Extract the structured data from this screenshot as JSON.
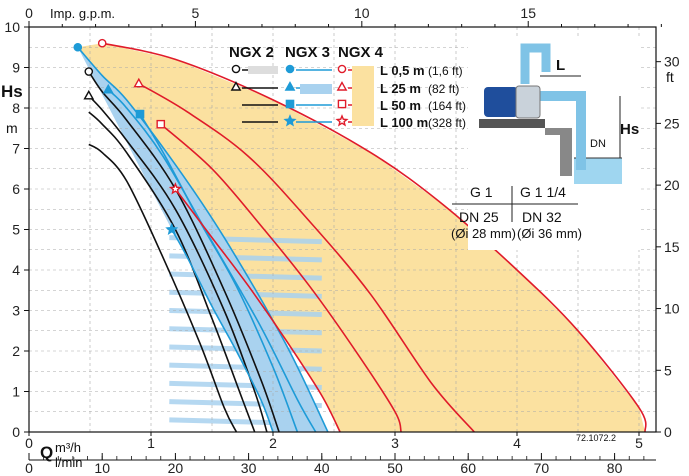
{
  "chart_data": {
    "type": "line",
    "title": "",
    "axes": {
      "x_main": {
        "label": "Q",
        "unit": "m³/h",
        "range": [
          0,
          5.2
        ],
        "ticks": [
          "0",
          "1",
          "2",
          "3",
          "4",
          "5"
        ]
      },
      "x_lmin": {
        "unit": "l/min",
        "ticks": [
          "0",
          "10",
          "20",
          "30",
          "40",
          "50",
          "60",
          "70",
          "80"
        ]
      },
      "x_top": {
        "label": "Imp. g.p.m.",
        "range": [
          0,
          19.2
        ],
        "ticks": [
          "0",
          "5",
          "10",
          "15"
        ]
      },
      "y_left": {
        "label": "Hs",
        "unit": "m",
        "range": [
          0,
          10
        ],
        "ticks": [
          "0",
          "1",
          "2",
          "3",
          "4",
          "5",
          "6",
          "7",
          "8",
          "9",
          "10"
        ]
      },
      "y_right": {
        "unit": "ft",
        "range": [
          0,
          33
        ],
        "ticks": [
          "0",
          "5",
          "10",
          "15",
          "20",
          "25",
          "30"
        ]
      }
    },
    "legend": {
      "models": [
        "NGX 2",
        "NGX 3",
        "NGX 4"
      ],
      "lengths": [
        {
          "label": "L 0,5  m",
          "ft": "(1,6  ft)"
        },
        {
          "label": "L 25   m",
          "ft": "(82   ft)"
        },
        {
          "label": "L 50   m",
          "ft": "(164 ft)"
        },
        {
          "label": "L 100 m",
          "ft": "(328 ft)"
        }
      ]
    },
    "series": [
      {
        "model": "NGX 2",
        "length": "L 0,5 m",
        "x": [
          0.49,
          0.6,
          0.8,
          1.2,
          1.6,
          1.9,
          2.05
        ],
        "y": [
          8.9,
          8.4,
          7.7,
          6.0,
          3.5,
          1.3,
          0
        ]
      },
      {
        "model": "NGX 2",
        "length": "L 25 m",
        "x": [
          0.49,
          0.6,
          0.8,
          1.2,
          1.6,
          1.85,
          1.95
        ],
        "y": [
          8.3,
          7.95,
          7.2,
          5.5,
          3.0,
          1.0,
          0
        ]
      },
      {
        "model": "NGX 2",
        "length": "L 50 m",
        "x": [
          0.49,
          0.6,
          0.8,
          1.2,
          1.5,
          1.75,
          1.85
        ],
        "y": [
          7.9,
          7.6,
          6.9,
          5.0,
          2.8,
          0.8,
          0
        ]
      },
      {
        "model": "NGX 2",
        "length": "L 100 m",
        "x": [
          0.49,
          0.6,
          0.8,
          1.1,
          1.4,
          1.6,
          1.7
        ],
        "y": [
          7.1,
          6.9,
          6.2,
          4.3,
          2.2,
          0.6,
          0
        ]
      },
      {
        "model": "NGX 3",
        "length": "L 0,5 m",
        "x": [
          0.4,
          0.6,
          0.8,
          1.2,
          1.6,
          2.1,
          2.45
        ],
        "y": [
          9.5,
          8.8,
          8.2,
          6.6,
          4.8,
          2.2,
          0
        ]
      },
      {
        "model": "NGX 3",
        "length": "L 25 m",
        "x": [
          0.65,
          0.8,
          1.1,
          1.5,
          1.9,
          2.2,
          2.35
        ],
        "y": [
          8.45,
          8.0,
          6.8,
          4.7,
          2.6,
          0.8,
          0
        ]
      },
      {
        "model": "NGX 3",
        "length": "L 50 m",
        "x": [
          0.91,
          1.1,
          1.4,
          1.7,
          2.0,
          2.2
        ],
        "y": [
          7.85,
          6.9,
          5.2,
          3.6,
          1.6,
          0
        ]
      },
      {
        "model": "NGX 3",
        "length": "L 100 m",
        "x": [
          1.17,
          1.3,
          1.5,
          1.7,
          1.9,
          2.0
        ],
        "y": [
          5.0,
          4.3,
          3.1,
          2.0,
          0.8,
          0
        ]
      },
      {
        "model": "NGX 4",
        "length": "L 0,5 m",
        "x": [
          0.6,
          1.2,
          2.0,
          2.8,
          3.4,
          4.0,
          4.5,
          5.0,
          5.05
        ],
        "y": [
          9.6,
          9.2,
          8.2,
          6.9,
          5.6,
          4.0,
          2.5,
          0.6,
          0
        ]
      },
      {
        "model": "NGX 4",
        "length": "L 25 m",
        "x": [
          0.9,
          1.3,
          1.8,
          2.3,
          2.8,
          3.3,
          3.65
        ],
        "y": [
          8.6,
          7.9,
          6.8,
          5.2,
          3.4,
          1.2,
          0
        ]
      },
      {
        "model": "NGX 4",
        "length": "L 50 m",
        "x": [
          1.08,
          1.5,
          1.9,
          2.3,
          2.7,
          3.0,
          3.05
        ],
        "y": [
          7.6,
          6.5,
          5.1,
          3.6,
          1.9,
          0.5,
          0
        ]
      },
      {
        "model": "NGX 4",
        "length": "L 100 m",
        "x": [
          1.2,
          1.5,
          1.8,
          2.1,
          2.4,
          2.55
        ],
        "y": [
          6.0,
          4.8,
          3.6,
          2.3,
          0.9,
          0
        ]
      }
    ],
    "inset": {
      "L": "L",
      "Hs": "Hs",
      "DN": "DN",
      "g1": "G 1",
      "dn25": "DN 25",
      "oi28": "(Øi 28 mm)",
      "g114": "G 1 1/4",
      "dn32": "DN 32",
      "oi36": "(Øi 36 mm)"
    },
    "code": "72.1072.2",
    "colors": {
      "ngx2": "#111111",
      "ngx3": "#1e9bd7",
      "ngx4": "#e01b2a",
      "fill_yellow": "#fbe1a0",
      "fill_blue": "#a9d2ef"
    }
  }
}
